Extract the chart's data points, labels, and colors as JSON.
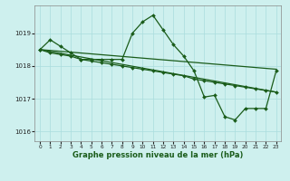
{
  "title": "Graphe pression niveau de la mer (hPa)",
  "background_color": "#cef0ee",
  "grid_color": "#aadddd",
  "line_color": "#1a5c1a",
  "xlim": [
    -0.5,
    23.5
  ],
  "ylim": [
    1015.7,
    1019.85
  ],
  "yticks": [
    1016,
    1017,
    1018,
    1019
  ],
  "xticks": [
    0,
    1,
    2,
    3,
    4,
    5,
    6,
    7,
    8,
    9,
    10,
    11,
    12,
    13,
    14,
    15,
    16,
    17,
    18,
    19,
    20,
    21,
    22,
    23
  ],
  "line1_x": [
    0,
    1,
    2,
    3,
    4,
    5,
    6,
    7,
    8,
    9,
    10,
    11,
    12,
    13,
    14,
    15,
    16,
    17,
    18,
    19,
    20,
    21,
    22,
    23
  ],
  "line1_y": [
    1018.5,
    1018.8,
    1018.6,
    1018.4,
    1018.2,
    1018.2,
    1018.2,
    1018.2,
    1018.2,
    1019.0,
    1019.35,
    1019.55,
    1019.1,
    1018.65,
    1018.3,
    1017.85,
    1017.05,
    1017.1,
    1016.45,
    1016.35,
    1016.7,
    1016.7,
    1016.7,
    1017.85
  ],
  "line2_x": [
    0,
    23
  ],
  "line2_y": [
    1018.5,
    1017.9
  ],
  "line3_x": [
    0,
    1,
    2,
    3,
    4,
    5,
    6,
    7,
    8,
    9,
    10,
    11,
    12,
    13,
    14,
    15,
    16,
    17,
    18,
    19,
    20,
    21,
    22,
    23
  ],
  "line3_y": [
    1018.5,
    1018.4,
    1018.35,
    1018.3,
    1018.2,
    1018.15,
    1018.1,
    1018.05,
    1018.0,
    1017.95,
    1017.9,
    1017.85,
    1017.8,
    1017.75,
    1017.7,
    1017.6,
    1017.55,
    1017.5,
    1017.45,
    1017.4,
    1017.35,
    1017.3,
    1017.25,
    1017.2
  ],
  "line4_x": [
    0,
    23
  ],
  "line4_y": [
    1018.5,
    1017.2
  ]
}
